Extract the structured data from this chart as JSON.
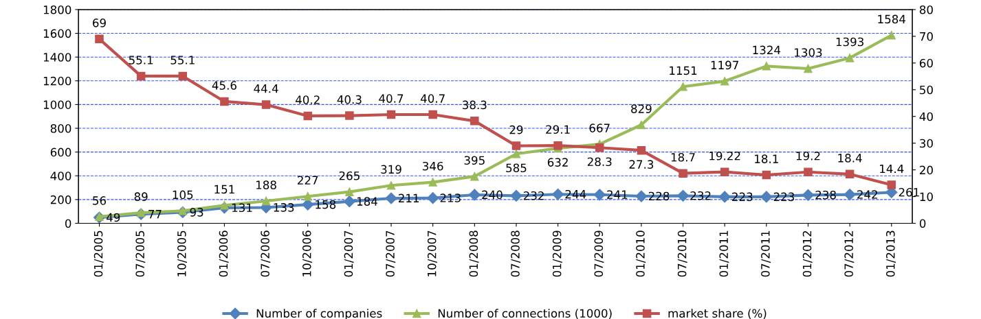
{
  "chart_data": {
    "type": "line",
    "categories": [
      "01/2005",
      "07/2005",
      "10/2005",
      "01/2006",
      "07/2006",
      "10/2006",
      "01/2007",
      "07/2007",
      "10/2007",
      "01/2008",
      "07/2008",
      "01/2009",
      "07/2009",
      "01/2010",
      "07/2010",
      "01/2011",
      "07/2011",
      "01/2012",
      "07/2012",
      "01/2013"
    ],
    "series": [
      {
        "name": "Number of companies",
        "color": "#4f81bd",
        "marker": "diamond",
        "values": [
          49,
          77,
          93,
          131,
          133,
          158,
          184,
          211,
          213,
          240,
          232,
          244,
          241,
          228,
          232,
          223,
          223,
          238,
          242,
          261
        ]
      },
      {
        "name": "Number of connections (1000)",
        "color": "#9bbb59",
        "marker": "triangle",
        "values": [
          56,
          89,
          105,
          151,
          188,
          227,
          265,
          319,
          346,
          395,
          585,
          632,
          667,
          829,
          1151,
          1197,
          1324,
          1303,
          1393,
          1584
        ]
      },
      {
        "name": "market share (%)",
        "color": "#c0504d",
        "marker": "square",
        "axis": "y2",
        "values": [
          69,
          55.1,
          55.1,
          45.6,
          44.4,
          40.2,
          40.3,
          40.7,
          40.7,
          38.3,
          29,
          29.1,
          28.3,
          27.3,
          18.7,
          19.22,
          18.1,
          19.2,
          18.4,
          14.4
        ]
      }
    ],
    "ylim": [
      0,
      1800
    ],
    "yticks": [
      0,
      200,
      400,
      600,
      800,
      1000,
      1200,
      1400,
      1600,
      1800
    ],
    "y2lim": [
      0,
      80
    ],
    "y2ticks": [
      0,
      10,
      20,
      30,
      40,
      50,
      60,
      70,
      80
    ],
    "grid": "y",
    "legend": "bottom",
    "data_labels": true,
    "line_style": "solid"
  }
}
